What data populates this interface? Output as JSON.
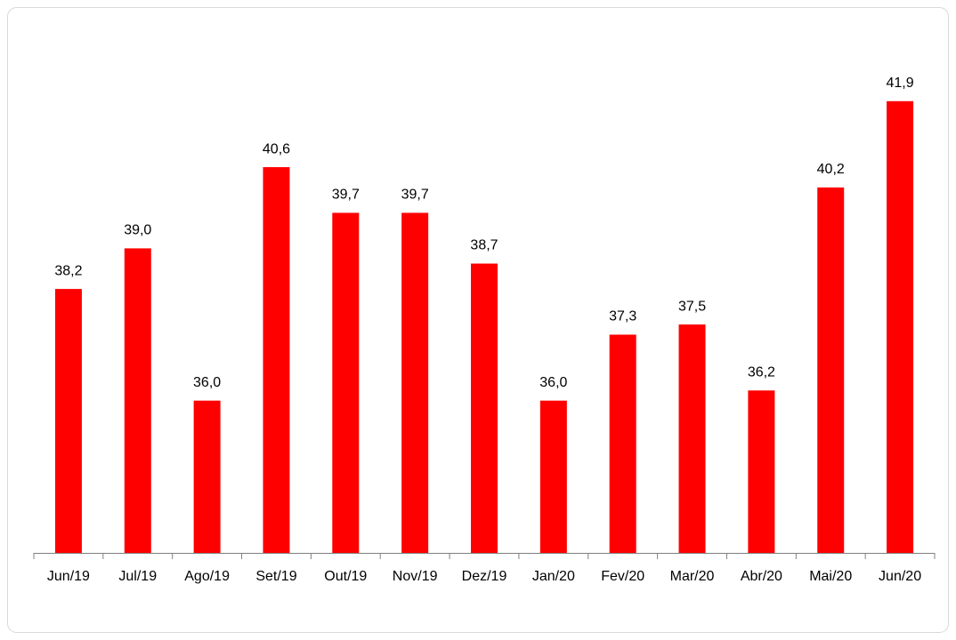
{
  "chart_data": {
    "type": "bar",
    "categories": [
      "Jun/19",
      "Jul/19",
      "Ago/19",
      "Set/19",
      "Out/19",
      "Nov/19",
      "Dez/19",
      "Jan/20",
      "Fev/20",
      "Mar/20",
      "Abr/20",
      "Mai/20",
      "Jun/20"
    ],
    "values": [
      38.2,
      39.0,
      36.0,
      40.6,
      39.7,
      39.7,
      38.7,
      36.0,
      37.3,
      37.5,
      36.2,
      40.2,
      41.9
    ],
    "value_labels": [
      "38,2",
      "39,0",
      "36,0",
      "40,6",
      "39,7",
      "39,7",
      "38,7",
      "36,0",
      "37,3",
      "37,5",
      "36,2",
      "40,2",
      "41,9"
    ],
    "color": "#ff0000",
    "ylim": [
      33,
      43
    ]
  }
}
